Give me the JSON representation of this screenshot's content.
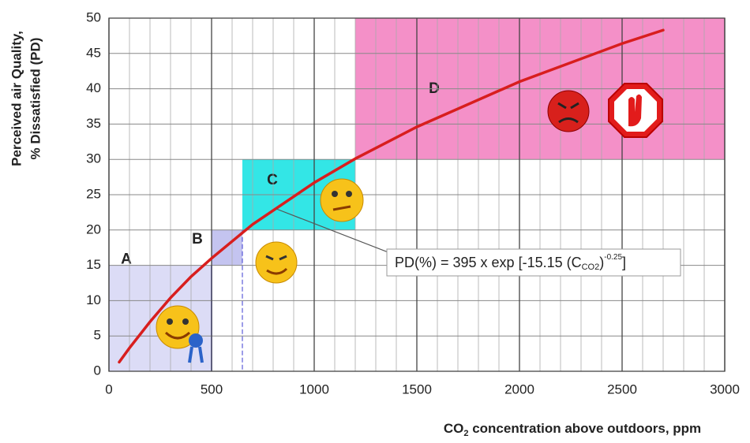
{
  "chart_data": {
    "type": "line",
    "x_label": [
      "CO",
      "2",
      " concentration above outdoors, ppm"
    ],
    "y_label": [
      "Perceived air Quality,",
      "% Dissatisfied (PD)"
    ],
    "annotation": [
      "PD(%) = 395 x exp [-15.15 (C",
      "CO2",
      ")",
      "-0.25",
      "]"
    ],
    "xlim": [
      0,
      3000
    ],
    "xticks": [
      0,
      500,
      1000,
      1500,
      2000,
      2500,
      3000
    ],
    "ylim": [
      0,
      50
    ],
    "yticks": [
      0,
      5,
      10,
      15,
      20,
      25,
      30,
      35,
      40,
      45,
      50
    ],
    "grid": true,
    "regions": [
      {
        "label": "A",
        "x": [
          0,
          500
        ],
        "y": [
          0,
          15
        ],
        "color": "#dcdcf6"
      },
      {
        "label": "B",
        "x": [
          500,
          650
        ],
        "y": [
          15,
          20
        ],
        "color": "#c4c4f0"
      },
      {
        "label": "C",
        "x": [
          650,
          1200
        ],
        "y": [
          20,
          30
        ],
        "color": "#33e6e6"
      },
      {
        "label": "D",
        "x": [
          1200,
          3000
        ],
        "y": [
          30,
          50
        ],
        "color": "#f490c8"
      }
    ],
    "series": [
      {
        "color": "#d81e1e",
        "x": [
          50,
          100,
          200,
          300,
          400,
          500,
          700,
          1000,
          1200,
          1500,
          2000,
          2500,
          2700
        ],
        "values": [
          1.3,
          3.3,
          7.0,
          10.4,
          13.4,
          16.0,
          20.8,
          26.7,
          30.1,
          34.6,
          41.0,
          46.4,
          48.3
        ]
      }
    ]
  }
}
